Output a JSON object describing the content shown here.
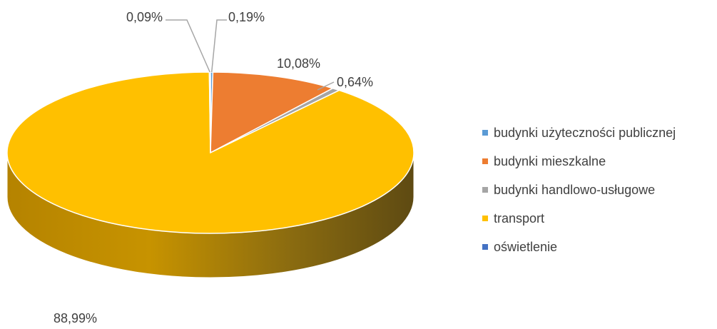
{
  "chart_data": {
    "type": "pie",
    "title": "",
    "categories": [
      "budynki użyteczności publicznej",
      "budynki mieszkalne",
      "budynki handlowo-usługowe",
      "transport",
      "oświetlenie"
    ],
    "values": [
      0.19,
      10.08,
      0.64,
      88.99,
      0.09
    ],
    "data_labels": [
      "0,19%",
      "10,08%",
      "0,64%",
      "88,99%",
      "0,09%"
    ],
    "colors": [
      "#5b9bd5",
      "#ed7d31",
      "#a5a5a5",
      "#ffc000",
      "#4472c4"
    ],
    "legend_position": "right",
    "style": "3d"
  }
}
